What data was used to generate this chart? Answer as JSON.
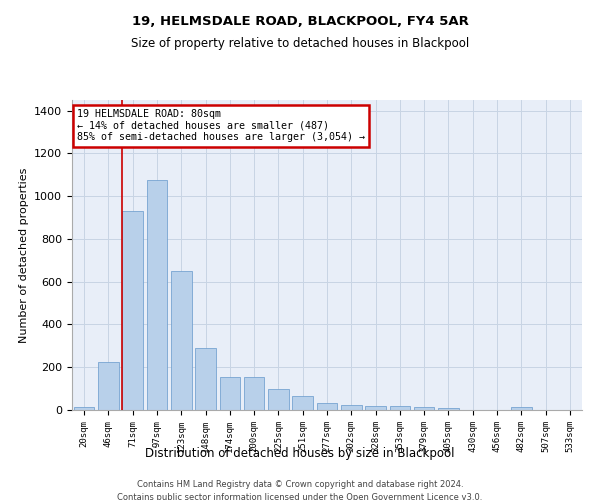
{
  "title1": "19, HELMSDALE ROAD, BLACKPOOL, FY4 5AR",
  "title2": "Size of property relative to detached houses in Blackpool",
  "xlabel": "Distribution of detached houses by size in Blackpool",
  "ylabel": "Number of detached properties",
  "categories": [
    "20sqm",
    "46sqm",
    "71sqm",
    "97sqm",
    "123sqm",
    "148sqm",
    "174sqm",
    "200sqm",
    "225sqm",
    "251sqm",
    "277sqm",
    "302sqm",
    "328sqm",
    "353sqm",
    "379sqm",
    "405sqm",
    "430sqm",
    "456sqm",
    "482sqm",
    "507sqm",
    "533sqm"
  ],
  "values": [
    15,
    225,
    930,
    1075,
    650,
    290,
    155,
    155,
    100,
    65,
    35,
    25,
    20,
    20,
    15,
    10,
    0,
    0,
    15,
    0,
    0
  ],
  "bar_color": "#b8d0ea",
  "bar_edge_color": "#6699cc",
  "grid_color": "#c8d4e4",
  "bg_color": "#e8eef8",
  "annotation_line1": "19 HELMSDALE ROAD: 80sqm",
  "annotation_line2": "← 14% of detached houses are smaller (487)",
  "annotation_line3": "85% of semi-detached houses are larger (3,054) →",
  "annotation_box_color": "#ffffff",
  "annotation_box_edge": "#cc0000",
  "vline_color": "#cc0000",
  "vline_x_index": 2,
  "ylim": [
    0,
    1450
  ],
  "yticks": [
    0,
    200,
    400,
    600,
    800,
    1000,
    1200,
    1400
  ],
  "footnote_line1": "Contains HM Land Registry data © Crown copyright and database right 2024.",
  "footnote_line2": "Contains public sector information licensed under the Open Government Licence v3.0."
}
